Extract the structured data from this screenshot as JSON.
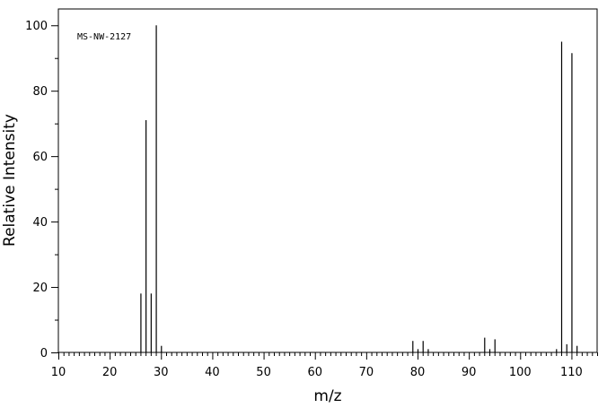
{
  "chart_data": {
    "type": "bar",
    "subtype": "mass-spectrum-stick",
    "annotation": "MS-NW-2127",
    "xlabel": "m/z",
    "ylabel": "Relative Intensity",
    "xlim": [
      10,
      115
    ],
    "ylim": [
      0,
      105
    ],
    "x_ticks": [
      10,
      20,
      30,
      40,
      50,
      60,
      70,
      80,
      90,
      100,
      110
    ],
    "y_ticks": [
      0,
      20,
      40,
      60,
      80,
      100
    ],
    "grid": false,
    "legend": "none",
    "peaks": [
      {
        "mz": 26,
        "intensity": 18
      },
      {
        "mz": 27,
        "intensity": 71
      },
      {
        "mz": 28,
        "intensity": 18
      },
      {
        "mz": 29,
        "intensity": 100
      },
      {
        "mz": 30,
        "intensity": 2
      },
      {
        "mz": 79,
        "intensity": 3.5
      },
      {
        "mz": 80,
        "intensity": 1
      },
      {
        "mz": 81,
        "intensity": 3.5
      },
      {
        "mz": 82,
        "intensity": 1
      },
      {
        "mz": 93,
        "intensity": 4.5
      },
      {
        "mz": 94,
        "intensity": 1
      },
      {
        "mz": 95,
        "intensity": 4
      },
      {
        "mz": 107,
        "intensity": 1
      },
      {
        "mz": 108,
        "intensity": 95
      },
      {
        "mz": 109,
        "intensity": 2.5
      },
      {
        "mz": 110,
        "intensity": 91.5
      },
      {
        "mz": 111,
        "intensity": 2
      }
    ]
  }
}
